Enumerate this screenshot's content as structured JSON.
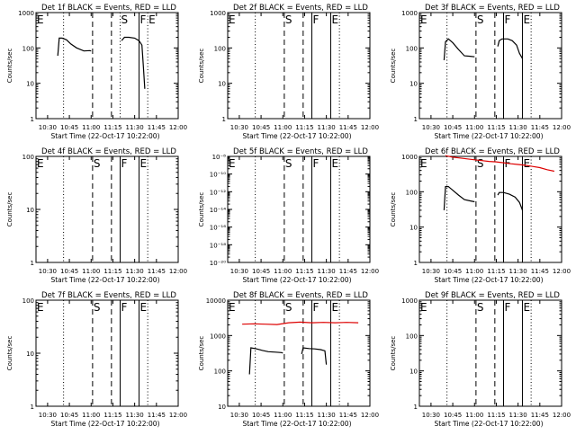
{
  "chart_data": [
    {
      "type": "line",
      "title": "Det 1f BLACK = Events, RED = LLD",
      "xlabel": "Start Time (22-Oct-17 10:22:00)",
      "ylabel": "Counts/sec",
      "yscale": "log",
      "ylim": [
        1,
        1000
      ],
      "xlim": [
        "10:22",
        "12:00"
      ],
      "x_ticks": [
        "10:30",
        "10:45",
        "11:00",
        "11:15",
        "11:30",
        "11:45",
        "12:00"
      ],
      "y_ticks": [
        "1",
        "10",
        "100",
        "1000"
      ],
      "markers": [
        {
          "time": "10:22",
          "label": "E",
          "style": "dotted"
        },
        {
          "time": "10:41",
          "label": "",
          "style": "dotted"
        },
        {
          "time": "11:01",
          "label": "",
          "style": "dashed"
        },
        {
          "time": "11:14",
          "label": "",
          "style": "dashed"
        },
        {
          "time": "11:20",
          "label": "S",
          "style": "dotted"
        },
        {
          "time": "11:33",
          "label": "F",
          "style": "solid"
        },
        {
          "time": "11:39",
          "label": "E",
          "style": "dotted"
        }
      ],
      "series": [
        {
          "color": "#000000",
          "segments": [
            {
              "x": [
                "10:37",
                "10:38",
                "10:40",
                "10:43",
                "10:46",
                "10:50",
                "10:55",
                "10:59",
                "11:00"
              ],
              "y": [
                60,
                190,
                190,
                170,
                130,
                100,
                82,
                84,
                82
              ]
            },
            {
              "x": [
                "11:21",
                "11:23",
                "11:26",
                "11:30",
                "11:33",
                "11:35",
                "11:36",
                "11:37"
              ],
              "y": [
                160,
                200,
                200,
                190,
                160,
                120,
                30,
                7
              ]
            }
          ]
        }
      ]
    },
    {
      "type": "line",
      "title": "Det 2f BLACK = Events, RED = LLD",
      "xlabel": "Start Time (22-Oct-17 10:22:00)",
      "ylabel": "Counts/sec",
      "yscale": "log",
      "ylim": [
        1,
        1000
      ],
      "xlim": [
        "10:22",
        "12:00"
      ],
      "x_ticks": [
        "10:30",
        "10:45",
        "11:00",
        "11:15",
        "11:30",
        "11:45",
        "12:00"
      ],
      "y_ticks": [
        "1",
        "10",
        "100",
        "1000"
      ],
      "markers": [
        {
          "time": "10:22",
          "label": "E",
          "style": "dotted"
        },
        {
          "time": "10:41",
          "label": "",
          "style": "dotted"
        },
        {
          "time": "11:01",
          "label": "S",
          "style": "dashed"
        },
        {
          "time": "11:14",
          "label": "",
          "style": "dashed"
        },
        {
          "time": "11:20",
          "label": "F",
          "style": "solid"
        },
        {
          "time": "11:33",
          "label": "E",
          "style": "solid"
        },
        {
          "time": "11:39",
          "label": "",
          "style": "dotted"
        }
      ],
      "series": []
    },
    {
      "type": "line",
      "title": "Det 3f BLACK = Events, RED = LLD",
      "xlabel": "Start Time (22-Oct-17 10:22:00)",
      "ylabel": "Counts/sec",
      "yscale": "log",
      "ylim": [
        1,
        1000
      ],
      "xlim": [
        "10:22",
        "12:00"
      ],
      "x_ticks": [
        "10:30",
        "10:45",
        "11:00",
        "11:15",
        "11:30",
        "11:45",
        "12:00"
      ],
      "y_ticks": [
        "1",
        "10",
        "100",
        "1000"
      ],
      "markers": [
        {
          "time": "10:22",
          "label": "E",
          "style": "dotted"
        },
        {
          "time": "10:41",
          "label": "",
          "style": "dotted"
        },
        {
          "time": "11:01",
          "label": "S",
          "style": "dashed"
        },
        {
          "time": "11:14",
          "label": "",
          "style": "dashed"
        },
        {
          "time": "11:20",
          "label": "F",
          "style": "solid"
        },
        {
          "time": "11:33",
          "label": "E",
          "style": "solid"
        },
        {
          "time": "11:39",
          "label": "",
          "style": "dotted"
        }
      ],
      "series": [
        {
          "color": "#000000",
          "segments": [
            {
              "x": [
                "10:39",
                "10:40",
                "10:42",
                "10:45",
                "10:49",
                "10:53",
                "10:57",
                "11:00"
              ],
              "y": [
                45,
                150,
                180,
                140,
                90,
                60,
                58,
                56
              ]
            },
            {
              "x": [
                "11:16",
                "11:17",
                "11:19",
                "11:23",
                "11:26",
                "11:29",
                "11:31",
                "11:33"
              ],
              "y": [
                110,
                160,
                180,
                180,
                160,
                120,
                70,
                50
              ]
            }
          ]
        }
      ]
    },
    {
      "type": "line",
      "title": "Det 4f BLACK = Events, RED = LLD",
      "xlabel": "Start Time (22-Oct-17 10:22:00)",
      "ylabel": "Counts/sec",
      "yscale": "log",
      "ylim": [
        1,
        100
      ],
      "xlim": [
        "10:22",
        "12:00"
      ],
      "x_ticks": [
        "10:30",
        "10:45",
        "11:00",
        "11:15",
        "11:30",
        "11:45",
        "12:00"
      ],
      "y_ticks": [
        "1",
        "10",
        "100"
      ],
      "markers": [
        {
          "time": "10:22",
          "label": "E",
          "style": "dotted"
        },
        {
          "time": "10:41",
          "label": "",
          "style": "dotted"
        },
        {
          "time": "11:01",
          "label": "S",
          "style": "dashed"
        },
        {
          "time": "11:14",
          "label": "",
          "style": "dashed"
        },
        {
          "time": "11:20",
          "label": "F",
          "style": "solid"
        },
        {
          "time": "11:33",
          "label": "E",
          "style": "solid"
        },
        {
          "time": "11:39",
          "label": "",
          "style": "dotted"
        }
      ],
      "series": []
    },
    {
      "type": "line",
      "title": "Det 5f BLACK = Events, RED = LLD",
      "xlabel": "Start Time (22-Oct-17 10:22:00)",
      "ylabel": "Counts/sec",
      "yscale": "log",
      "ylim": [
        1e-20,
        1e-08
      ],
      "xlim": [
        "10:22",
        "12:00"
      ],
      "x_ticks": [
        "10:30",
        "10:45",
        "11:00",
        "11:15",
        "11:30",
        "11:45",
        "12:00"
      ],
      "y_ticks": [
        "10⁻⁸",
        "10⁻¹⁰",
        "10⁻¹²",
        "10⁻¹⁴",
        "10⁻¹⁶",
        "10⁻¹⁸",
        "10⁻²⁰"
      ],
      "markers": [
        {
          "time": "10:22",
          "label": "E",
          "style": "dotted"
        },
        {
          "time": "10:41",
          "label": "",
          "style": "dotted"
        },
        {
          "time": "11:01",
          "label": "S",
          "style": "dashed"
        },
        {
          "time": "11:14",
          "label": "",
          "style": "dashed"
        },
        {
          "time": "11:20",
          "label": "F",
          "style": "solid"
        },
        {
          "time": "11:33",
          "label": "E",
          "style": "solid"
        },
        {
          "time": "11:39",
          "label": "",
          "style": "dotted"
        }
      ],
      "series": []
    },
    {
      "type": "line",
      "title": "Det 6f BLACK = Events, RED = LLD",
      "xlabel": "Start Time (22-Oct-17 10:22:00)",
      "ylabel": "Counts/sec",
      "yscale": "log",
      "ylim": [
        1,
        1000
      ],
      "xlim": [
        "10:22",
        "12:00"
      ],
      "x_ticks": [
        "10:30",
        "10:45",
        "11:00",
        "11:15",
        "11:30",
        "11:45",
        "12:00"
      ],
      "y_ticks": [
        "1",
        "10",
        "100",
        "1000"
      ],
      "markers": [
        {
          "time": "10:22",
          "label": "E",
          "style": "dotted"
        },
        {
          "time": "10:41",
          "label": "",
          "style": "dotted"
        },
        {
          "time": "11:01",
          "label": "S",
          "style": "dashed"
        },
        {
          "time": "11:14",
          "label": "",
          "style": "dashed"
        },
        {
          "time": "11:20",
          "label": "F",
          "style": "solid"
        },
        {
          "time": "11:33",
          "label": "E",
          "style": "solid"
        },
        {
          "time": "11:39",
          "label": "",
          "style": "dotted"
        }
      ],
      "series": [
        {
          "color": "#000000",
          "segments": [
            {
              "x": [
                "10:39",
                "10:40",
                "10:42",
                "10:45",
                "10:49",
                "10:53",
                "10:57",
                "11:00"
              ],
              "y": [
                30,
                140,
                140,
                110,
                80,
                60,
                55,
                52
              ]
            },
            {
              "x": [
                "11:16",
                "11:17",
                "11:20",
                "11:24",
                "11:28",
                "11:31",
                "11:33"
              ],
              "y": [
                80,
                95,
                95,
                85,
                70,
                50,
                30
              ]
            }
          ]
        },
        {
          "color": "#dd0000",
          "segments": [
            {
              "x": [
                "10:40",
                "10:45",
                "10:50",
                "10:55",
                "11:00",
                "11:05",
                "11:10",
                "11:15",
                "11:20",
                "11:25",
                "11:30",
                "11:35",
                "11:40",
                "11:45",
                "11:50",
                "11:55"
              ],
              "y": [
                1050,
                950,
                900,
                850,
                800,
                760,
                720,
                700,
                660,
                620,
                590,
                560,
                520,
                480,
                420,
                380
              ]
            }
          ]
        }
      ]
    },
    {
      "type": "line",
      "title": "Det 7f BLACK = Events, RED = LLD",
      "xlabel": "Start Time (22-Oct-17 10:22:00)",
      "ylabel": "Counts/sec",
      "yscale": "log",
      "ylim": [
        1,
        100
      ],
      "xlim": [
        "10:22",
        "12:00"
      ],
      "x_ticks": [
        "10:30",
        "10:45",
        "11:00",
        "11:15",
        "11:30",
        "11:45",
        "12:00"
      ],
      "y_ticks": [
        "1",
        "10",
        "100"
      ],
      "markers": [
        {
          "time": "10:22",
          "label": "E",
          "style": "dotted"
        },
        {
          "time": "10:41",
          "label": "",
          "style": "dotted"
        },
        {
          "time": "11:01",
          "label": "S",
          "style": "dashed"
        },
        {
          "time": "11:14",
          "label": "",
          "style": "dashed"
        },
        {
          "time": "11:20",
          "label": "F",
          "style": "solid"
        },
        {
          "time": "11:33",
          "label": "E",
          "style": "solid"
        },
        {
          "time": "11:39",
          "label": "",
          "style": "dotted"
        }
      ],
      "series": []
    },
    {
      "type": "line",
      "title": "Det 8f BLACK = Events, RED = LLD",
      "xlabel": "Start Time (22-Oct-17 10:22:00)",
      "ylabel": "Counts/sec",
      "yscale": "log",
      "ylim": [
        10,
        10000
      ],
      "xlim": [
        "10:22",
        "12:00"
      ],
      "x_ticks": [
        "10:30",
        "10:45",
        "11:00",
        "11:15",
        "11:30",
        "11:45",
        "12:00"
      ],
      "y_ticks": [
        "10",
        "100",
        "1000",
        "10000"
      ],
      "markers": [
        {
          "time": "10:22",
          "label": "E",
          "style": "dotted"
        },
        {
          "time": "10:41",
          "label": "",
          "style": "dotted"
        },
        {
          "time": "11:01",
          "label": "S",
          "style": "dashed"
        },
        {
          "time": "11:14",
          "label": "",
          "style": "dashed"
        },
        {
          "time": "11:20",
          "label": "F",
          "style": "solid"
        },
        {
          "time": "11:33",
          "label": "E",
          "style": "solid"
        },
        {
          "time": "11:39",
          "label": "",
          "style": "dotted"
        }
      ],
      "series": [
        {
          "color": "#000000",
          "segments": [
            {
              "x": [
                "10:37",
                "10:38",
                "10:42",
                "10:46",
                "10:50",
                "10:55",
                "10:59",
                "11:00"
              ],
              "y": [
                80,
                450,
                420,
                380,
                350,
                340,
                330,
                320
              ]
            },
            {
              "x": [
                "11:13",
                "11:14",
                "11:18",
                "11:22",
                "11:26",
                "11:29",
                "11:30"
              ],
              "y": [
                300,
                450,
                430,
                420,
                400,
                370,
                150
              ]
            }
          ]
        },
        {
          "color": "#dd0000",
          "segments": [
            {
              "x": [
                "10:32",
                "10:40",
                "10:48",
                "10:56",
                "11:04",
                "11:12",
                "11:20",
                "11:28",
                "11:36",
                "11:44",
                "11:52"
              ],
              "y": [
                2100,
                2150,
                2100,
                2050,
                2300,
                2400,
                2300,
                2350,
                2300,
                2350,
                2300
              ]
            }
          ]
        }
      ]
    },
    {
      "type": "line",
      "title": "Det 9f BLACK = Events, RED = LLD",
      "xlabel": "Start Time (22-Oct-17 10:22:00)",
      "ylabel": "Counts/sec",
      "yscale": "log",
      "ylim": [
        1,
        1000
      ],
      "xlim": [
        "10:22",
        "12:00"
      ],
      "x_ticks": [
        "10:30",
        "10:45",
        "11:00",
        "11:15",
        "11:30",
        "11:45",
        "12:00"
      ],
      "y_ticks": [
        "1",
        "10",
        "100",
        "1000"
      ],
      "markers": [
        {
          "time": "10:22",
          "label": "E",
          "style": "dotted"
        },
        {
          "time": "10:41",
          "label": "",
          "style": "dotted"
        },
        {
          "time": "11:01",
          "label": "S",
          "style": "dashed"
        },
        {
          "time": "11:14",
          "label": "",
          "style": "dashed"
        },
        {
          "time": "11:20",
          "label": "F",
          "style": "solid"
        },
        {
          "time": "11:33",
          "label": "E",
          "style": "solid"
        },
        {
          "time": "11:39",
          "label": "",
          "style": "dotted"
        }
      ],
      "series": []
    }
  ]
}
